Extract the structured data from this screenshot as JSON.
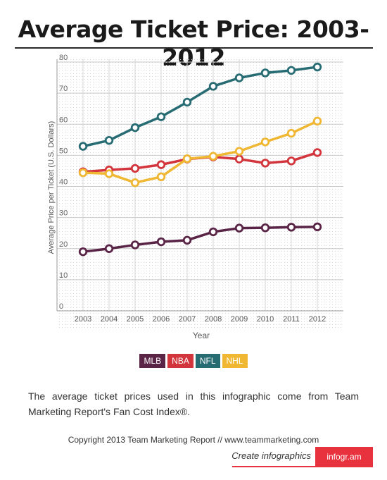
{
  "title": "Average Ticket Price: 2003-2012",
  "chart_data": {
    "type": "line",
    "x": [
      2003,
      2004,
      2005,
      2006,
      2007,
      2008,
      2009,
      2010,
      2011,
      2012
    ],
    "xlabel": "Year",
    "ylabel": "Average Price per Ticket (U.S. Dollars)",
    "ylim": [
      0,
      80
    ],
    "yticks": [
      0,
      10,
      20,
      30,
      40,
      50,
      60,
      70,
      80
    ],
    "grid": true,
    "legend_position": "bottom",
    "series": [
      {
        "name": "MLB",
        "color": "#5a2447",
        "values": [
          19.0,
          20.0,
          21.2,
          22.2,
          22.7,
          25.4,
          26.6,
          26.7,
          26.9,
          27.0
        ]
      },
      {
        "name": "NBA",
        "color": "#d3353c",
        "values": [
          44.7,
          45.3,
          45.8,
          47.0,
          48.8,
          49.5,
          48.8,
          47.5,
          48.2,
          50.9
        ]
      },
      {
        "name": "NFL",
        "color": "#276b73",
        "values": [
          52.9,
          54.8,
          58.9,
          62.4,
          67.1,
          72.2,
          74.9,
          76.5,
          77.3,
          78.4
        ]
      },
      {
        "name": "NHL",
        "color": "#f0b733",
        "values": [
          44.4,
          44.1,
          41.2,
          43.1,
          48.9,
          49.7,
          51.3,
          54.3,
          57.1,
          61.0
        ]
      }
    ]
  },
  "note": "The average ticket prices used in this infographic come from Team Marketing Report's Fan Cost Index®.",
  "copyright": "Copyright 2013 Team Marketing Report // www.teammarketing.com",
  "footer": {
    "cta": "Create infographics",
    "logo": "infogr.am"
  }
}
